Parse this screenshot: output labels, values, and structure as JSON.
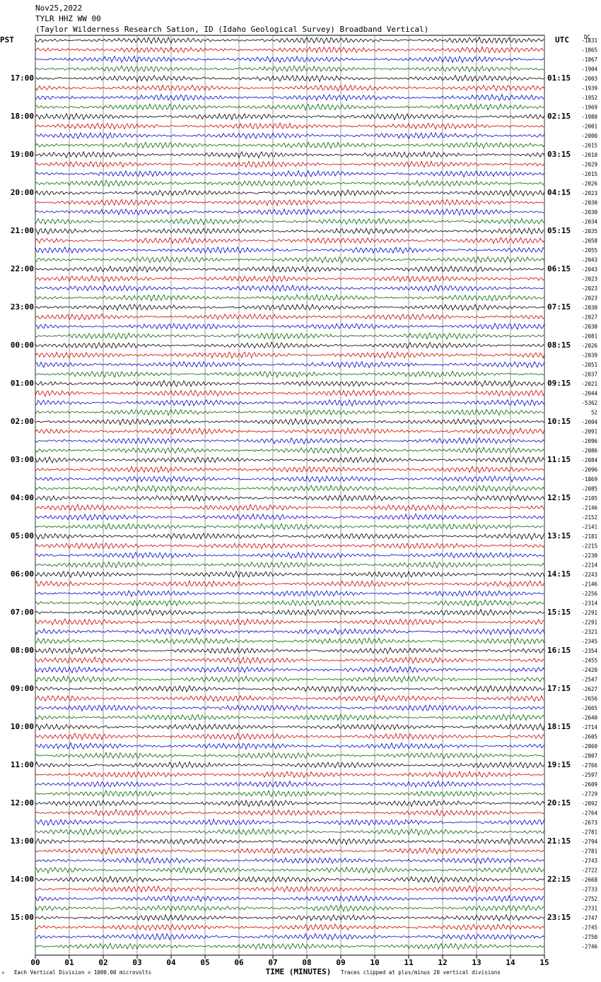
{
  "chart_data": {
    "type": "helicorder",
    "title_lines": [
      "Nov25,2022",
      "TYLR HHZ WW 00",
      "(Taylor Wilderness Research Sation, ID (Idaho Geological Survey) Broadband Vertical)"
    ],
    "left_label": "PST",
    "right_label": "UTC",
    "dc_label": "DC",
    "pst_labels": [
      "17:00",
      "18:00",
      "19:00",
      "20:00",
      "21:00",
      "22:00",
      "23:00",
      "00:00",
      "01:00",
      "02:00",
      "03:00",
      "04:00",
      "05:00",
      "06:00",
      "07:00",
      "08:00",
      "09:00",
      "10:00",
      "11:00",
      "12:00",
      "13:00",
      "14:00",
      "15:00"
    ],
    "utc_labels": [
      "01:15",
      "02:15",
      "03:15",
      "04:15",
      "05:15",
      "06:15",
      "07:15",
      "08:15",
      "09:15",
      "10:15",
      "11:15",
      "12:15",
      "13:15",
      "14:15",
      "15:15",
      "16:15",
      "17:15",
      "18:15",
      "19:15",
      "20:15",
      "21:15",
      "22:15",
      "23:15"
    ],
    "dc_offsets": [
      -1831,
      -1865,
      -1867,
      -1904,
      -2003,
      -1939,
      -1952,
      -1969,
      -1980,
      -2001,
      -2000,
      -2015,
      -2010,
      -2029,
      -2015,
      -2026,
      -2023,
      -2030,
      -2030,
      -2034,
      -2035,
      -2058,
      -2055,
      -2043,
      -2043,
      -2023,
      -2023,
      -2023,
      -2030,
      -2027,
      -2030,
      -2081,
      -2026,
      -2039,
      -2051,
      -2037,
      -2021,
      -2044,
      -5362,
      52,
      -2004,
      -2091,
      -2096,
      -2086,
      -2084,
      -2096,
      -1869,
      -2085,
      -2105,
      -2146,
      -2152,
      -2141,
      -2181,
      -2215,
      -2230,
      -2214,
      -2243,
      -2146,
      -2256,
      -2314,
      -2291,
      -2291,
      -2321,
      -2345,
      -2354,
      -2455,
      -2420,
      -2547,
      -2627,
      -2656,
      -2665,
      -2640,
      -2714,
      -2605,
      -2860,
      -2807,
      -2766,
      -2597,
      -2609,
      -2729,
      -2892,
      -2764,
      -2673,
      -2781,
      -2794,
      -2781,
      -2743,
      -2722,
      -2668,
      -2733,
      -2752,
      -2731,
      -2747,
      -2745,
      -2750,
      -2746
    ],
    "trace_colors": [
      "#000000",
      "#cc0000",
      "#0000cc",
      "#006600"
    ],
    "xlim": [
      0,
      15
    ],
    "xticks": [
      {
        "value": 0,
        "label": "00"
      },
      {
        "value": 1,
        "label": "01"
      },
      {
        "value": 2,
        "label": "02"
      },
      {
        "value": 3,
        "label": "03"
      },
      {
        "value": 4,
        "label": "04"
      },
      {
        "value": 5,
        "label": "05"
      },
      {
        "value": 6,
        "label": "06"
      },
      {
        "value": 7,
        "label": "07"
      },
      {
        "value": 8,
        "label": "08"
      },
      {
        "value": 9,
        "label": "09"
      },
      10,
      11,
      12,
      13,
      14,
      15
    ],
    "xlabel": "TIME (MINUTES)",
    "footer_left": "Each Vertical Division = 1000.00 microvolts",
    "footer_right": "Traces clipped at plus/minus 20 vertical divisions"
  }
}
